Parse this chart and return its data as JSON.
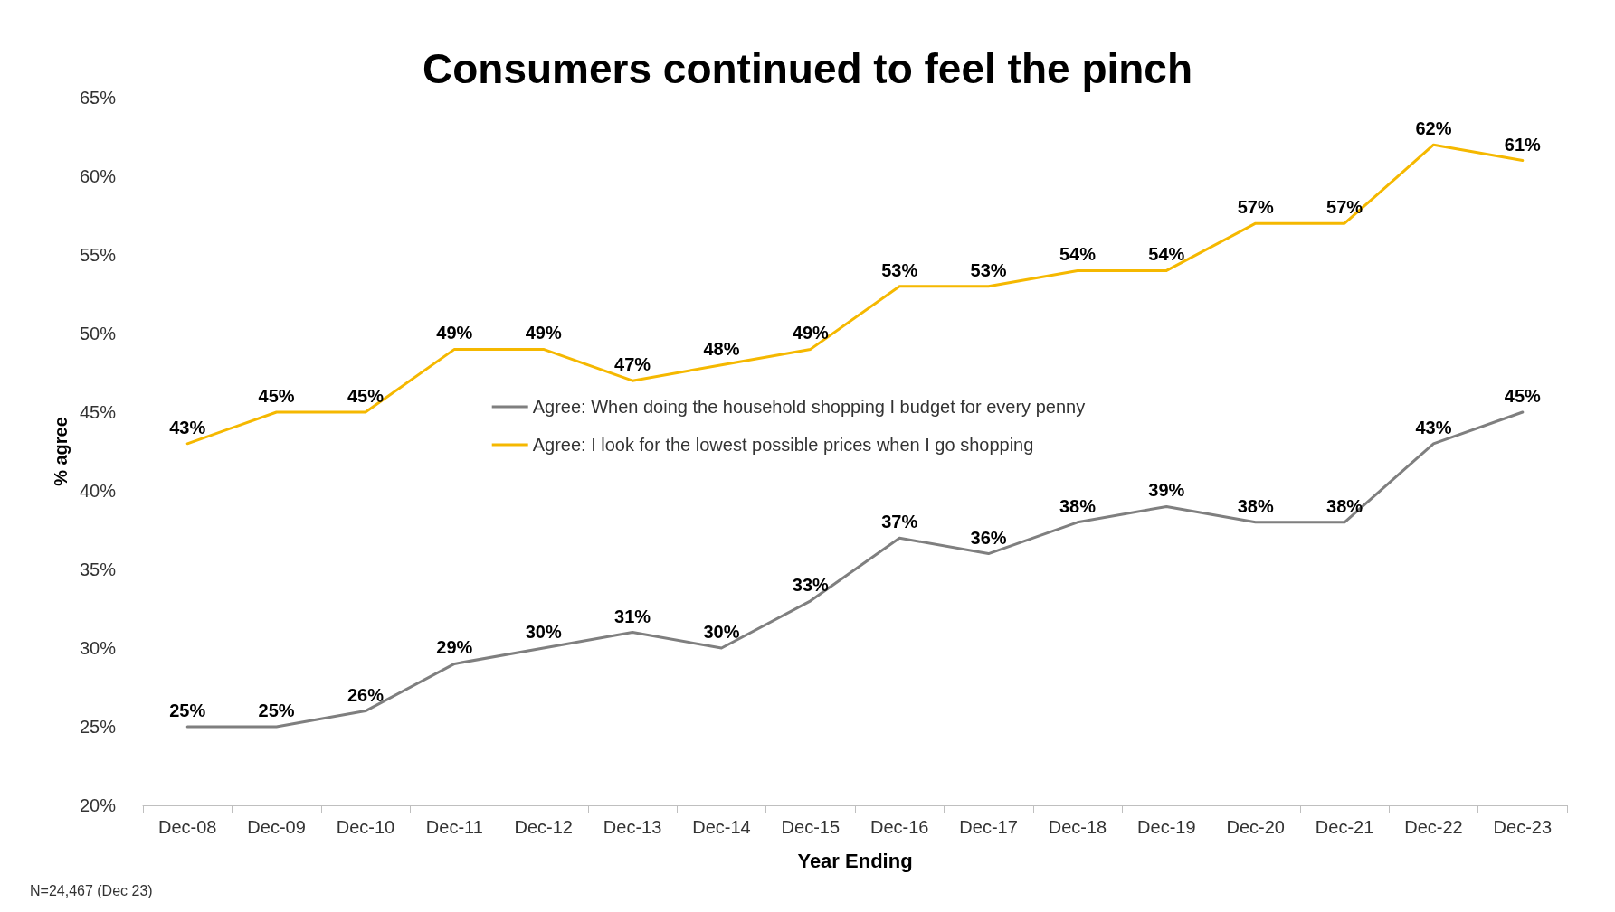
{
  "chart_data": {
    "type": "line",
    "title": "Consumers continued to feel the pinch",
    "xlabel": "Year Ending",
    "ylabel": "% agree",
    "categories": [
      "Dec-08",
      "Dec-09",
      "Dec-10",
      "Dec-11",
      "Dec-12",
      "Dec-13",
      "Dec-14",
      "Dec-15",
      "Dec-16",
      "Dec-17",
      "Dec-18",
      "Dec-19",
      "Dec-20",
      "Dec-21",
      "Dec-22",
      "Dec-23"
    ],
    "series": [
      {
        "name": "Agree: When doing the household shopping I budget for every penny",
        "color": "#7f7f7f",
        "values": [
          25,
          25,
          26,
          29,
          30,
          31,
          30,
          33,
          37,
          36,
          38,
          39,
          38,
          38,
          43,
          45
        ],
        "value_labels": [
          "25%",
          "25%",
          "26%",
          "29%",
          "30%",
          "31%",
          "30%",
          "33%",
          "37%",
          "36%",
          "38%",
          "39%",
          "38%",
          "38%",
          "43%",
          "45%"
        ]
      },
      {
        "name": "Agree: I look for the lowest possible prices when I go shopping",
        "color": "#f5b800",
        "values": [
          43,
          45,
          45,
          49,
          49,
          47,
          48,
          49,
          53,
          53,
          54,
          54,
          57,
          57,
          62,
          61
        ],
        "value_labels": [
          "43%",
          "45%",
          "45%",
          "49%",
          "49%",
          "47%",
          "48%",
          "49%",
          "53%",
          "53%",
          "54%",
          "54%",
          "57%",
          "57%",
          "62%",
          "61%"
        ]
      }
    ],
    "ylim": [
      20,
      65
    ],
    "yticks": [
      {
        "value": 20,
        "label": "20%"
      },
      {
        "value": 25,
        "label": "25%"
      },
      {
        "value": 30,
        "label": "30%"
      },
      {
        "value": 35,
        "label": "35%"
      },
      {
        "value": 40,
        "label": "40%"
      },
      {
        "value": 45,
        "label": "45%"
      },
      {
        "value": 50,
        "label": "50%"
      },
      {
        "value": 55,
        "label": "55%"
      },
      {
        "value": 60,
        "label": "60%"
      },
      {
        "value": 65,
        "label": "65%"
      }
    ],
    "grid": false,
    "legend": "center",
    "marker": "none",
    "line_style": "solid",
    "annotations": [
      "N=24,467 (Dec 23)"
    ]
  }
}
